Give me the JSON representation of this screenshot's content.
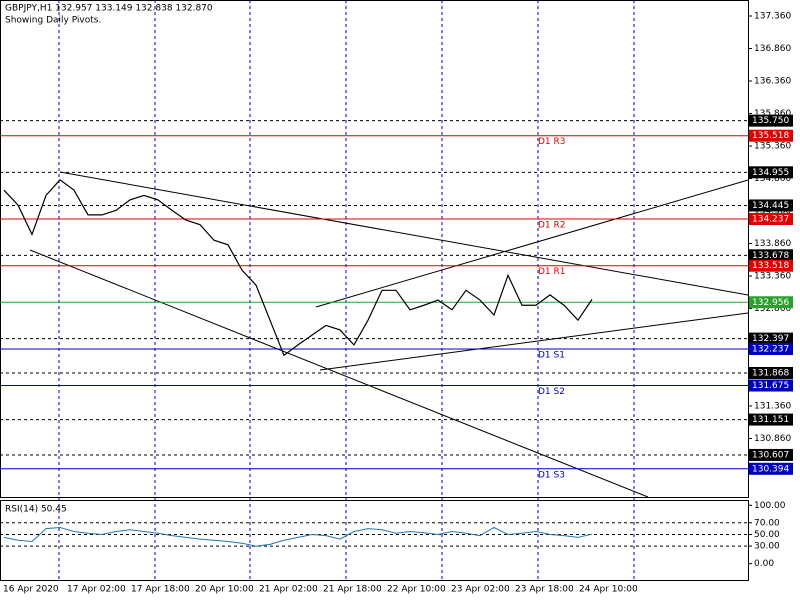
{
  "chart_data": {
    "type": "line",
    "title": "GBPJPY,H1  132.957 133.149 132.838 132.870",
    "subtitle": "Showing Daily Pivots.",
    "ylim": [
      129.96,
      137.606
    ],
    "yticks": [
      {
        "value": 137.36,
        "label": "137.360"
      },
      {
        "value": 136.86,
        "label": "136.860"
      },
      {
        "value": 136.36,
        "label": "136.360"
      },
      {
        "value": 135.86,
        "label": "135.860"
      },
      {
        "value": 135.36,
        "label": "135.360"
      },
      {
        "value": 134.86,
        "label": "134.860"
      },
      {
        "value": 134.36,
        "label": "134.360"
      },
      {
        "value": 133.86,
        "label": "133.860"
      },
      {
        "value": 133.36,
        "label": "133.360"
      },
      {
        "value": 132.86,
        "label": "132.860"
      },
      {
        "value": 132.36,
        "label": "132.360"
      },
      {
        "value": 131.86,
        "label": "131.860"
      },
      {
        "value": 131.36,
        "label": "131.360"
      },
      {
        "value": 130.86,
        "label": "130.860"
      },
      {
        "value": 130.36,
        "label": "130.360"
      }
    ],
    "x_labels": [
      "16 Apr 2020",
      "17 Apr 02:00",
      "17 Apr 18:00",
      "20 Apr 10:00",
      "21 Apr 02:00",
      "21 Apr 18:00",
      "22 Apr 10:00",
      "23 Apr 02:00",
      "23 Apr 18:00",
      "24 Apr 10:00"
    ],
    "levels": [
      {
        "value": 135.75,
        "label": "135.750"
      },
      {
        "value": 134.955,
        "label": "134.955"
      },
      {
        "value": 134.445,
        "label": "134.445"
      },
      {
        "value": 133.678,
        "label": "133.678"
      },
      {
        "value": 132.397,
        "label": "132.397"
      },
      {
        "value": 131.868,
        "label": "131.868"
      },
      {
        "value": 131.151,
        "label": "131.151"
      },
      {
        "value": 130.607,
        "label": "130.607"
      }
    ],
    "pivots": [
      {
        "name": "D1 R3",
        "value": 135.518,
        "label": "135.518",
        "color": "#e00000"
      },
      {
        "name": "D1 R2",
        "value": 134.237,
        "label": "134.237",
        "color": "#e00000"
      },
      {
        "name": "D1 R1",
        "value": 133.518,
        "label": "133.518",
        "color": "#e00000"
      },
      {
        "name": "D1 S1",
        "value": 132.237,
        "label": "132.237",
        "color": "#0000c0"
      },
      {
        "name": "D1 S2",
        "value": 131.675,
        "label": "131.675",
        "color": "#0000c0"
      },
      {
        "name": "D1 S3",
        "value": 130.394,
        "label": "130.394",
        "color": "#0000c0"
      }
    ],
    "current": {
      "value": 132.956,
      "label": "132.956",
      "color": "#2ca02c"
    },
    "color": "#000000",
    "close": [
      134.68,
      134.45,
      134.0,
      134.6,
      134.84,
      134.68,
      134.3,
      134.3,
      134.37,
      134.53,
      134.6,
      134.53,
      134.37,
      134.22,
      134.15,
      133.91,
      133.84,
      133.45,
      133.22,
      132.68,
      132.14,
      132.3,
      132.45,
      132.6,
      132.53,
      132.3,
      132.68,
      133.14,
      133.14,
      132.84,
      132.91,
      132.99,
      132.84,
      133.14,
      132.99,
      132.76,
      133.37,
      132.91,
      132.91,
      133.07,
      132.91,
      132.68,
      133.0
    ],
    "rsi": {
      "label": "RSI(14) 50.45",
      "color": "#1f77b4",
      "ylim": [
        -28,
        109
      ],
      "yticks": [
        {
          "value": 100,
          "label": "100.00"
        },
        {
          "value": 70,
          "label": "70.00"
        },
        {
          "value": 50,
          "label": "50.00"
        },
        {
          "value": 30,
          "label": "30.00"
        },
        {
          "value": 0,
          "label": "0.00"
        }
      ],
      "values": [
        45,
        40,
        38,
        60,
        62,
        55,
        52,
        50,
        55,
        58,
        55,
        52,
        48,
        45,
        42,
        40,
        38,
        35,
        30,
        33,
        40,
        45,
        50,
        48,
        42,
        55,
        60,
        58,
        52,
        55,
        53,
        50,
        55,
        52,
        48,
        62,
        50,
        52,
        55,
        50,
        48,
        45,
        50.45
      ]
    }
  }
}
